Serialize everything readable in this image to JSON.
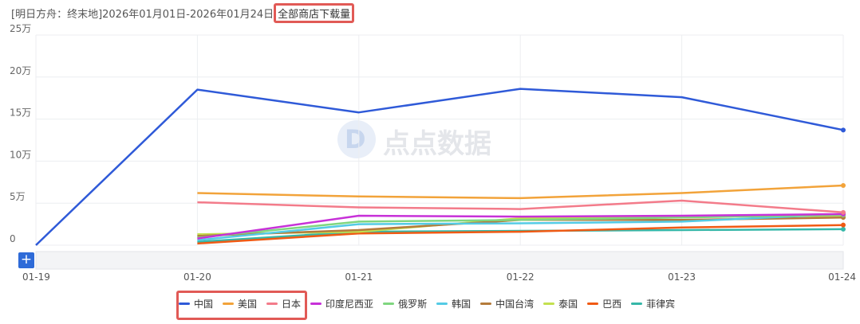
{
  "header": {
    "title_prefix": "[明日方舟：终末地]2026年01月01日-2026年01月24日",
    "title_highlight": "全部商店下载量"
  },
  "watermark": {
    "text": "点点数据"
  },
  "zoom": {
    "icon": "plus-icon",
    "label": "+"
  },
  "chart_data": {
    "type": "line",
    "x": [
      "01-19",
      "01-20",
      "01-21",
      "01-22",
      "01-23",
      "01-24"
    ],
    "ylim": [
      0,
      250000
    ],
    "yticks": [
      0,
      50000,
      100000,
      150000,
      200000,
      250000
    ],
    "ytick_labels": [
      "0",
      "5万",
      "10万",
      "15万",
      "20万",
      "25万"
    ],
    "grid": true,
    "legend_position": "bottom",
    "series": [
      {
        "name": "中国",
        "color": "#2f5ad8",
        "values": [
          0,
          185000,
          158000,
          186000,
          176000,
          137000
        ]
      },
      {
        "name": "美国",
        "color": "#f2a33a",
        "values": [
          null,
          62000,
          58000,
          56000,
          62000,
          71000
        ]
      },
      {
        "name": "日本",
        "color": "#f37b8a",
        "values": [
          null,
          51000,
          45000,
          43000,
          53000,
          39000
        ]
      },
      {
        "name": "印度尼西亚",
        "color": "#c731d8",
        "values": [
          null,
          8000,
          35000,
          34000,
          35000,
          37000
        ]
      },
      {
        "name": "俄罗斯",
        "color": "#7fd67f",
        "values": [
          null,
          9000,
          28000,
          30000,
          33000,
          36000
        ]
      },
      {
        "name": "韩国",
        "color": "#54cbe5",
        "values": [
          null,
          6000,
          25000,
          26000,
          28000,
          37000
        ]
      },
      {
        "name": "中国台湾",
        "color": "#b47b3b",
        "values": [
          null,
          11000,
          18000,
          30000,
          30000,
          33000
        ]
      },
      {
        "name": "泰国",
        "color": "#c3e04f",
        "values": [
          null,
          13000,
          16000,
          32000,
          34000,
          35000
        ]
      },
      {
        "name": "巴西",
        "color": "#f05a14",
        "values": [
          null,
          2000,
          14000,
          16000,
          21000,
          24000
        ]
      },
      {
        "name": "菲律宾",
        "color": "#35b7a8",
        "values": [
          null,
          4000,
          16000,
          17000,
          18000,
          19000
        ]
      }
    ]
  }
}
